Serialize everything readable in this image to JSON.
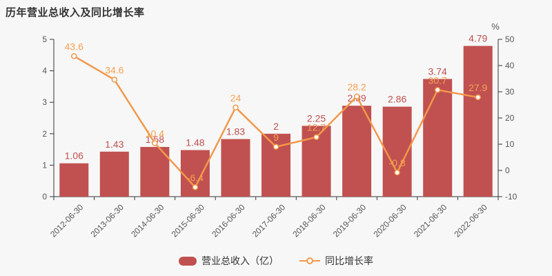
{
  "title": "历年营业总收入及同比增长率",
  "colors": {
    "background": "#f7f7f7",
    "bar": "#c05150",
    "bar_label": "#c0504d",
    "line": "#f2984b",
    "line_label": "#f5a053",
    "marker_fill": "#ffffff",
    "axis_line": "#333333",
    "tick_text": "#555555",
    "title_text": "#333333"
  },
  "chart_data": {
    "type": "bar",
    "combo": "bar+line",
    "categories": [
      "2012-06-30",
      "2013-06-30",
      "2014-06-30",
      "2015-06-30",
      "2016-06-30",
      "2017-06-30",
      "2018-06-30",
      "2019-06-30",
      "2020-06-30",
      "2021-06-30",
      "2022-06-30"
    ],
    "series": [
      {
        "name": "营业总收入（亿）",
        "type": "bar",
        "axis": "left",
        "values": [
          1.06,
          1.43,
          1.58,
          1.48,
          1.83,
          2,
          2.25,
          2.89,
          2.86,
          3.74,
          4.79
        ]
      },
      {
        "name": "同比增长率",
        "type": "line",
        "axis": "right",
        "values": [
          43.6,
          34.6,
          10.4,
          -6.4,
          24,
          9,
          12.7,
          28.2,
          -0.8,
          30.7,
          27.9
        ]
      }
    ],
    "title": "历年营业总收入及同比增长率",
    "xlabel": "",
    "ylabel_left": "",
    "ylabel_right": "%",
    "left_axis": {
      "min": 0,
      "max": 5,
      "interval": 1,
      "tick_labels": [
        "0",
        "1",
        "2",
        "3",
        "4",
        "5"
      ]
    },
    "right_axis": {
      "min": -10,
      "max": 50,
      "interval": 10,
      "unit": "%",
      "tick_labels": [
        "-10",
        "0",
        "10",
        "20",
        "30",
        "40",
        "50"
      ]
    },
    "grid": false,
    "legend_position": "bottom"
  },
  "legend": {
    "bar_label": "营业总收入（亿）",
    "line_label": "同比增长率"
  }
}
